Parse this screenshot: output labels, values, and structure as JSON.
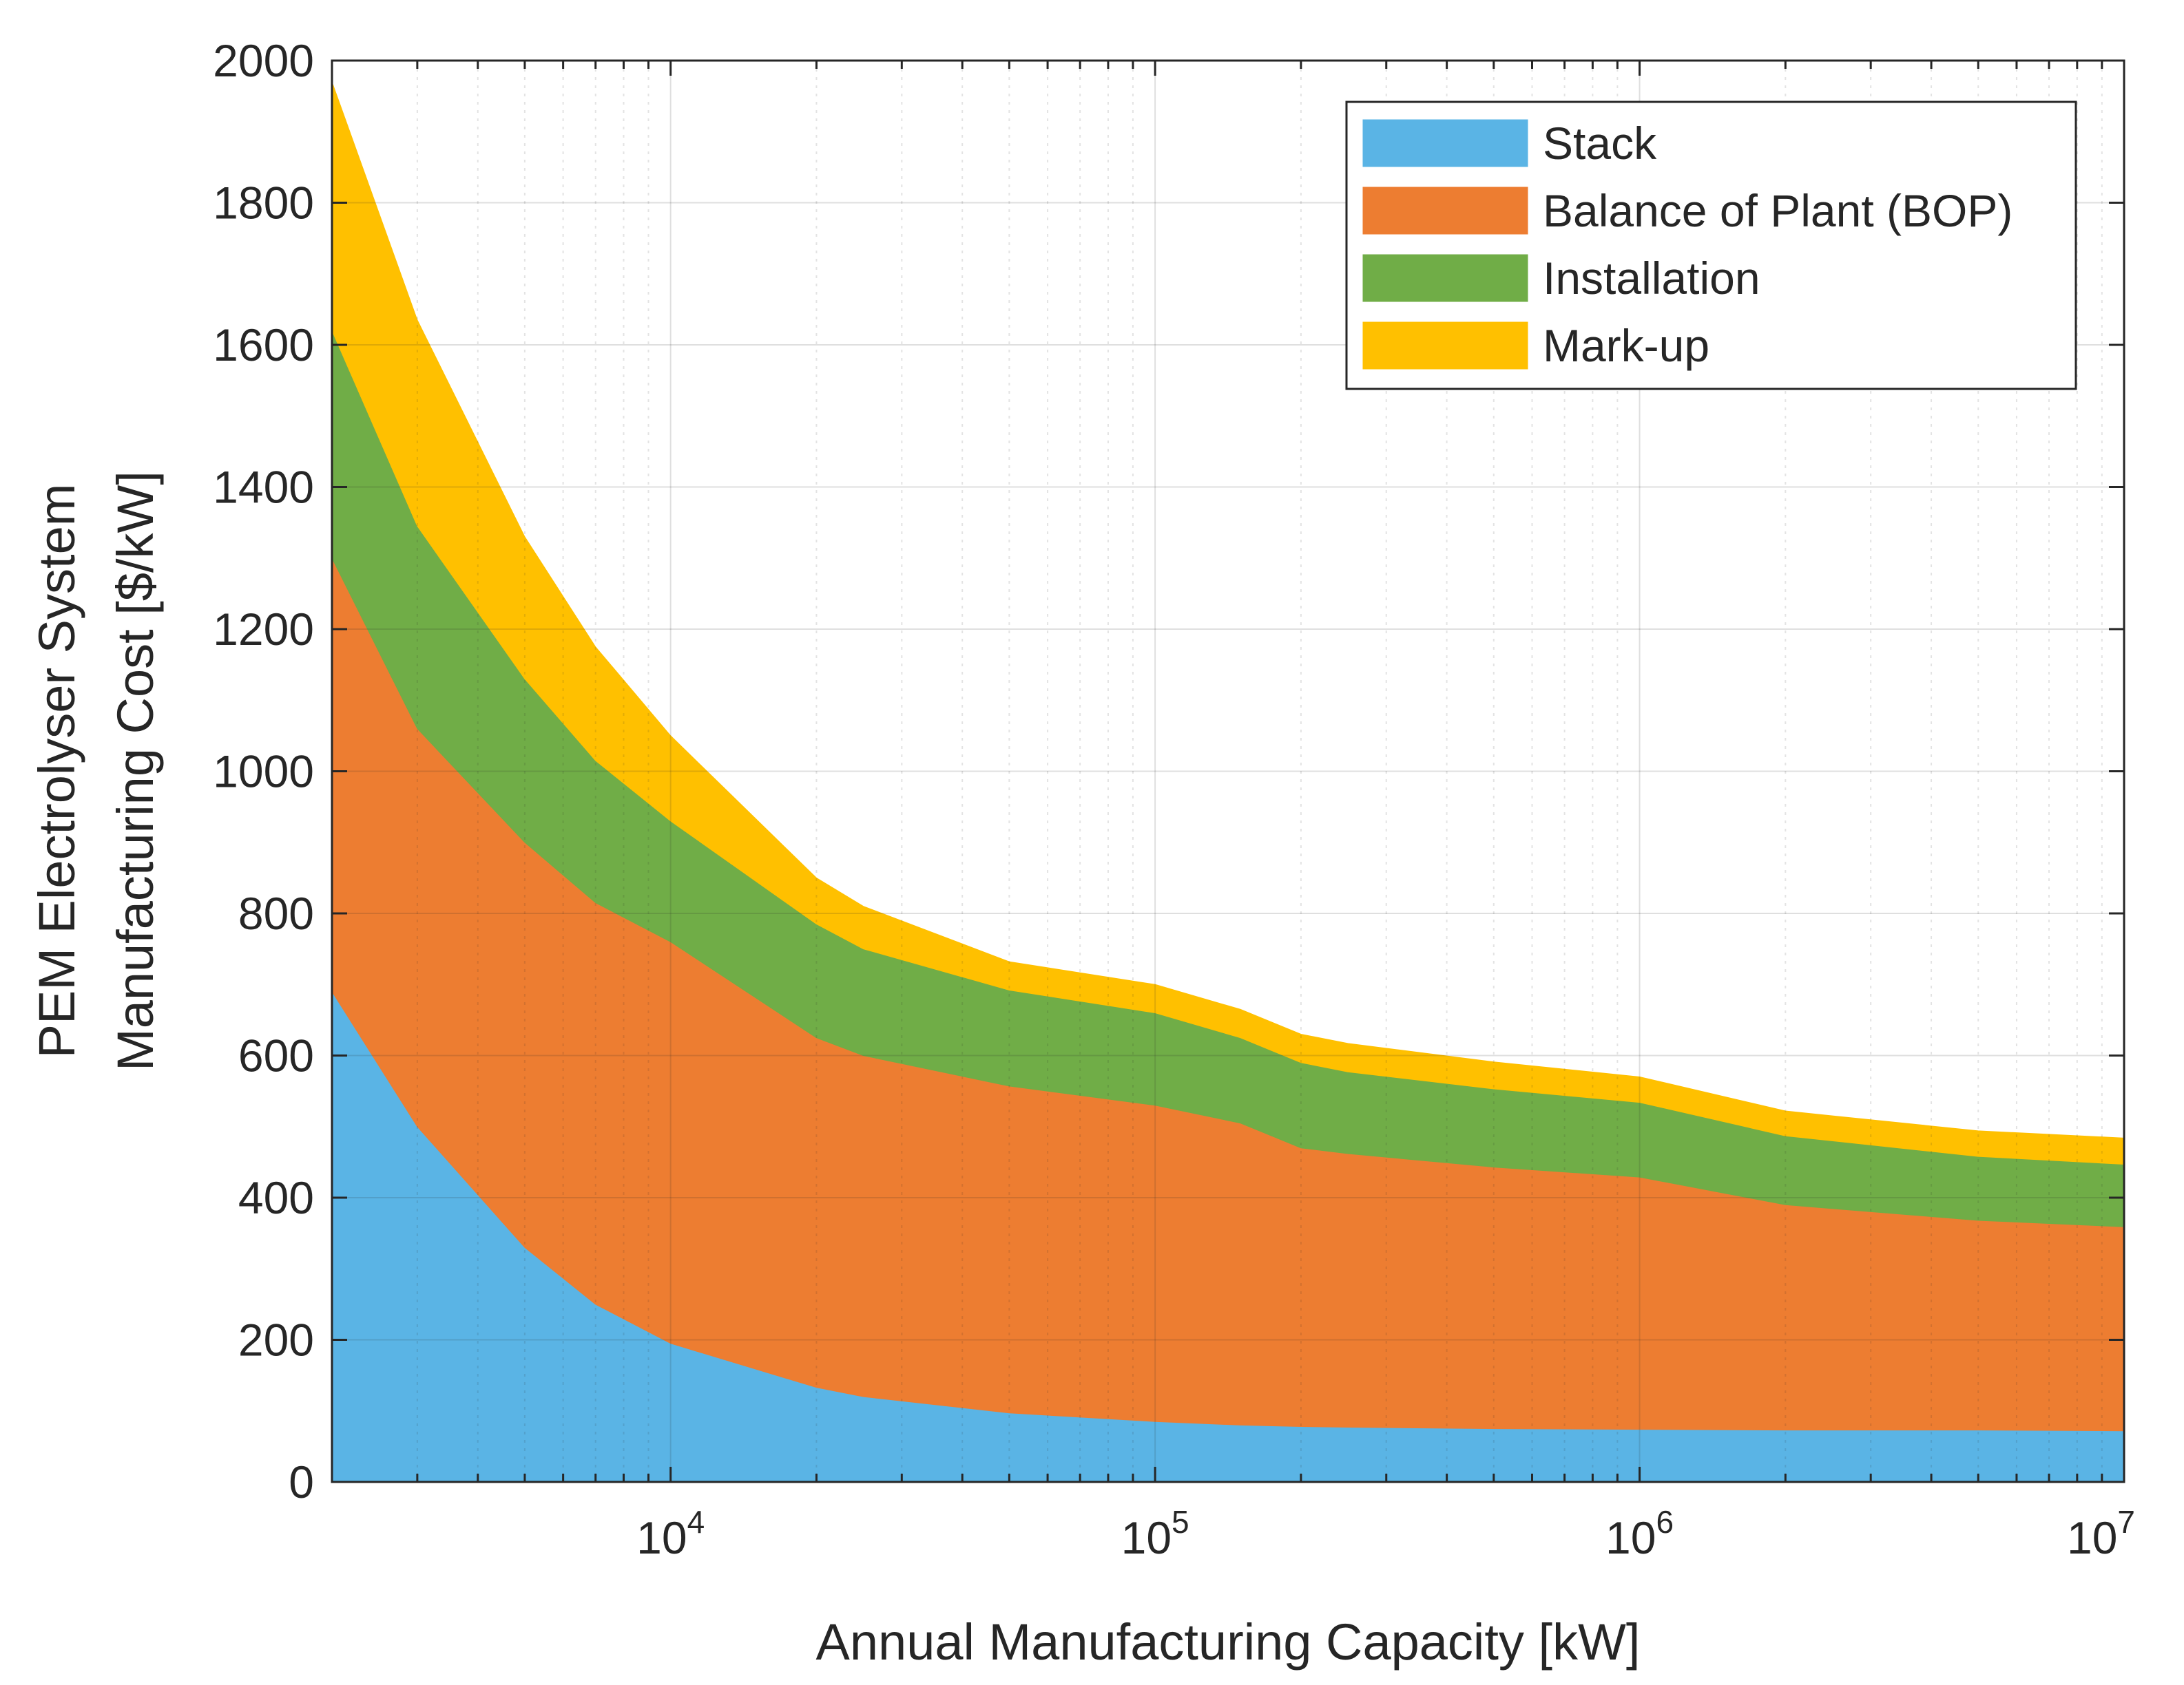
{
  "chart_data": {
    "type": "area",
    "stacked": true,
    "title": "",
    "xlabel": "Annual Manufacturing Capacity [kW]",
    "ylabel": [
      "PEM Electrolyser System",
      "Manufacturing Cost [$/kW]"
    ],
    "xscale": "log",
    "xlim": [
      2000,
      10000000
    ],
    "ylim": [
      0,
      2000
    ],
    "grid": true,
    "legend_position": "top-right",
    "y_ticks": [
      "0",
      "200",
      "400",
      "600",
      "800",
      "1000",
      "1200",
      "1400",
      "1600",
      "1800",
      "2000"
    ],
    "x_ticks": [
      {
        "base": "10",
        "exp": "4",
        "value": 10000
      },
      {
        "base": "10",
        "exp": "5",
        "value": 100000
      },
      {
        "base": "10",
        "exp": "6",
        "value": 1000000
      },
      {
        "base": "10",
        "exp": "7",
        "value": 10000000
      }
    ],
    "x": [
      2000,
      3000,
      5000,
      7000,
      10000,
      20000,
      25000,
      50000,
      100000,
      150000,
      200000,
      250000,
      500000,
      1000000,
      2000000,
      5000000,
      10000000
    ],
    "series": [
      {
        "name": "Stack",
        "color": "#5AB4E5",
        "values": [
          690,
          500,
          330,
          250,
          195,
          133,
          120,
          97,
          85,
          80,
          78,
          77,
          75,
          74,
          73,
          73,
          72
        ]
      },
      {
        "name": "Balance of Plant (BOP)",
        "color": "#ED7D31",
        "values": [
          610,
          560,
          570,
          565,
          565,
          492,
          480,
          460,
          445,
          425,
          392,
          385,
          368,
          355,
          317,
          295,
          287
        ]
      },
      {
        "name": "Installation",
        "color": "#70AD47",
        "values": [
          320,
          285,
          230,
          200,
          170,
          160,
          150,
          135,
          130,
          120,
          120,
          115,
          110,
          105,
          97,
          90,
          88
        ]
      },
      {
        "name": "Mark-up",
        "color": "#FFC000",
        "values": [
          350,
          290,
          200,
          160,
          120,
          65,
          60,
          40,
          40,
          40,
          40,
          40,
          38,
          36,
          35,
          36,
          37
        ]
      }
    ]
  }
}
